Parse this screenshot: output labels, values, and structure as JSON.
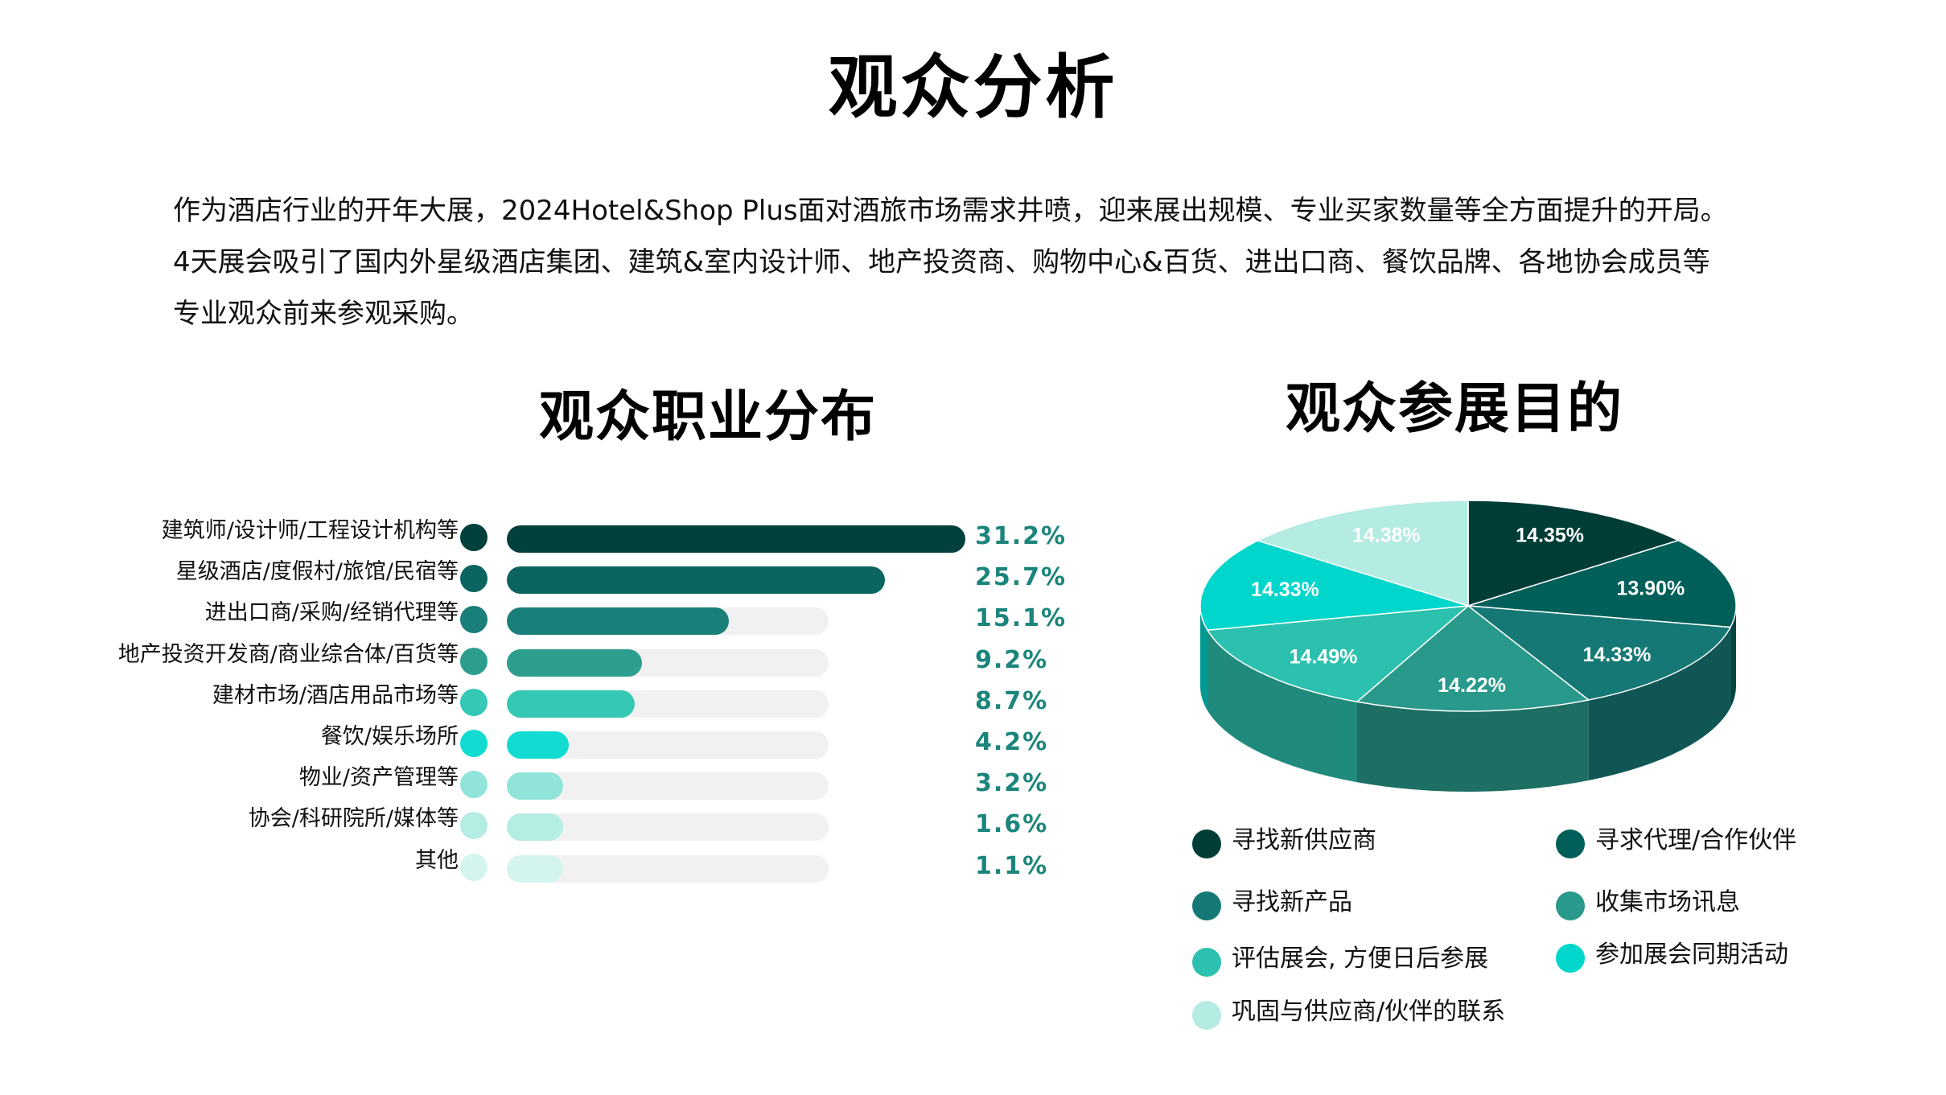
{
  "page": {
    "title": "观众分析",
    "intro": [
      "作为酒店行业的开年大展，2024Hotel&Shop  Plus面对酒旅市场需求井喷，迎来展出规模、专业买家数量等全方面提升的开局。",
      "4天展会吸引了国内外星级酒店集团、建筑&室内设计师、地产投资商、购物中心&百货、进出口商、餐饮品牌、各地协会成员等",
      "专业观众前来参观采购。"
    ]
  },
  "chart_data": [
    {
      "type": "bar",
      "title": "观众职业分布",
      "categories": [
        "建筑师/设计师/工程设计机构等",
        "星级酒店/度假村/旅馆/民宿等",
        "进出口商/采购/经销代理等",
        "地产投资开发商/商业综合体/百货等",
        "建材市场/酒店用品市场等",
        "餐饮/娱乐场所",
        "物业/资产管理等",
        "协会/科研院所/媒体等",
        "其他"
      ],
      "values": [
        31.2,
        25.7,
        15.1,
        9.2,
        8.7,
        4.2,
        3.2,
        1.6,
        1.1
      ],
      "labels": [
        "31.2%",
        "25.7%",
        "15.1%",
        "9.2%",
        "8.7%",
        "4.2%",
        "3.2%",
        "1.6%",
        "1.1%"
      ],
      "colors": [
        "#02403b",
        "#0b6460",
        "#1a7f78",
        "#2d9e8e",
        "#35c8b4",
        "#12dcd1",
        "#90e4da",
        "#b5ece4",
        "#d4f4ee"
      ]
    },
    {
      "type": "pie",
      "title": "观众参展目的",
      "style": "3d",
      "slices": [
        {
          "label": "寻找新供应商",
          "value": 14.35,
          "text": "14.35%",
          "color": "#003d36"
        },
        {
          "label": "寻求代理/合作伙伴",
          "value": 13.9,
          "text": "13.90%",
          "color": "#005f58"
        },
        {
          "label": "寻找新产品",
          "value": 14.33,
          "text": "14.33%",
          "color": "#157874"
        },
        {
          "label": "收集市场讯息",
          "value": 14.22,
          "text": "14.22%",
          "color": "#28998a"
        },
        {
          "label": "评估展会, 方便日后参展",
          "value": 14.49,
          "text": "14.49%",
          "color": "#2cc1ae"
        },
        {
          "label": "参加展会同期活动",
          "value": 14.33,
          "text": "14.33%",
          "color": "#00d6cc"
        },
        {
          "label": "巩固与供应商/伙伴的联系",
          "value": 14.38,
          "text": "14.38%",
          "color": "#b4ebe3"
        }
      ]
    }
  ]
}
